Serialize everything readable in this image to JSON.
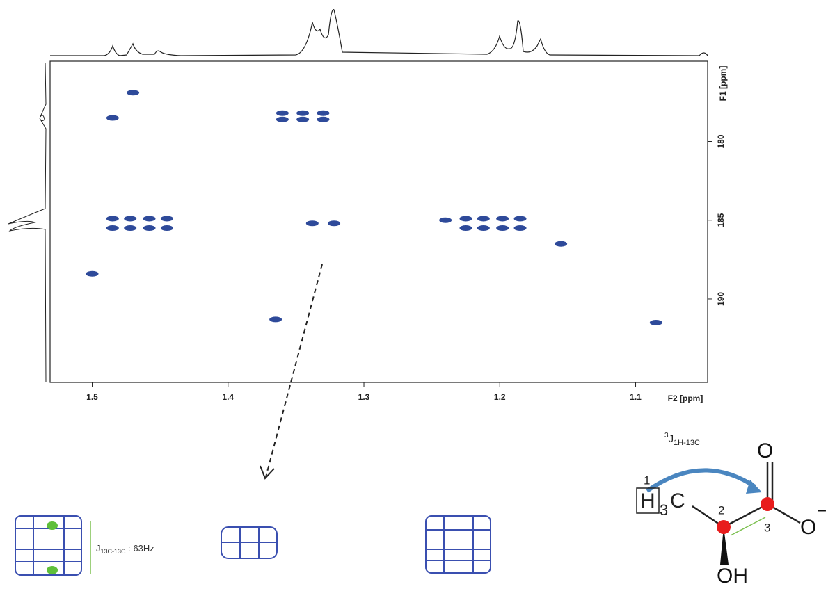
{
  "chart_data": {
    "type": "contour",
    "xlabel": "F2 [ppm]",
    "ylabel": "F1 [ppm]",
    "xlim": [
      1.531,
      1.047
    ],
    "xticks": [
      1.5,
      1.4,
      1.3,
      1.2,
      1.1
    ],
    "ylim": [
      174.9,
      195.3
    ],
    "yticks": [
      180,
      185,
      190
    ],
    "color": "#2e4a9a",
    "peaks": {
      "x": [
        1.485,
        1.472,
        1.458,
        1.445,
        1.485,
        1.472,
        1.458,
        1.445,
        1.225,
        1.212,
        1.198,
        1.185,
        1.225,
        1.212,
        1.198,
        1.185,
        1.338,
        1.322,
        1.36,
        1.345,
        1.33,
        1.36,
        1.345,
        1.33,
        1.47,
        1.485,
        1.5,
        1.365,
        1.24,
        1.155,
        1.085
      ],
      "y": [
        184.9,
        184.9,
        184.9,
        184.9,
        185.5,
        185.5,
        185.5,
        185.5,
        184.9,
        184.9,
        184.9,
        184.9,
        185.5,
        185.5,
        185.5,
        185.5,
        185.2,
        185.2,
        178.2,
        178.2,
        178.2,
        178.6,
        178.6,
        178.6,
        176.9,
        178.5,
        188.4,
        191.3,
        185.0,
        186.5,
        191.5
      ]
    }
  },
  "annotations": {
    "coupling": {
      "symbol": "J",
      "subscript": "13C-13C",
      "text": " : 63Hz"
    },
    "long_range": {
      "superscript": "3",
      "symbol": "J",
      "subscript": "1H-13C"
    },
    "molecule": {
      "atom_1": "1",
      "h": "H",
      "h_sub": "3",
      "c": "C",
      "atom_2": "2",
      "atom_3": "3",
      "o_top": "O",
      "o_right": "O",
      "charge": "−",
      "oh": "OH"
    }
  }
}
